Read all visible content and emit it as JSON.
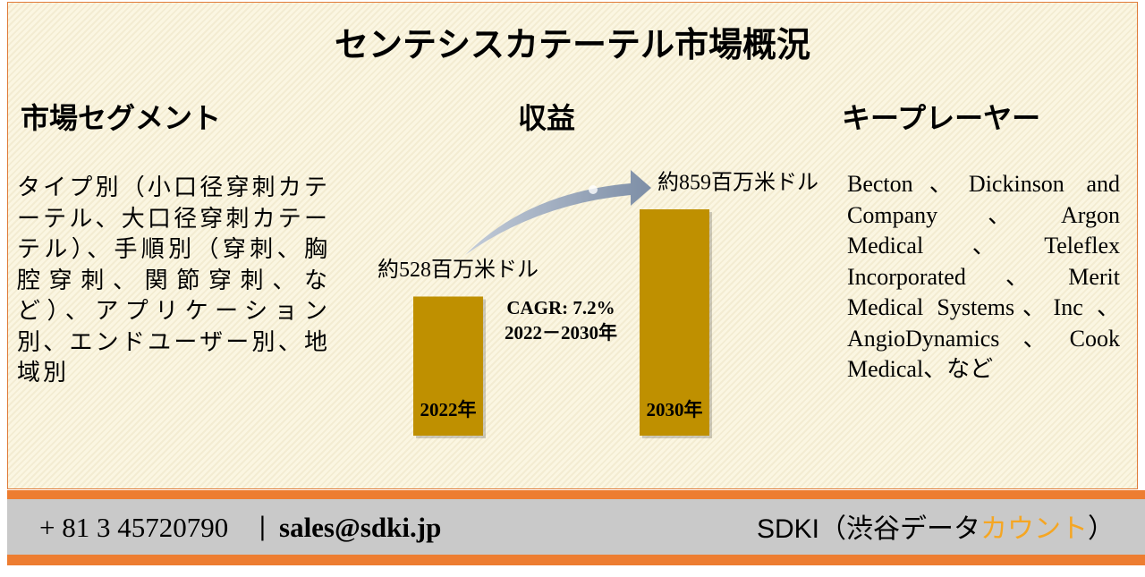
{
  "title": "センテシスカテーテル市場概況",
  "segments": {
    "heading": "市場セグメント",
    "text": "タイプ別（小口径穿刺カテーテル、大口径穿刺カテーテル）、手順別（穿刺、胸腔穿刺、関節穿刺、など）、アプリケーション別、エンドユーザー別、地域別"
  },
  "chart_data": {
    "type": "bar",
    "title": "収益",
    "categories": [
      "2022年",
      "2030年"
    ],
    "values": [
      528,
      859
    ],
    "value_labels": [
      "約528百万米ドル",
      "約859百万米ドル"
    ],
    "color": "#bf9000",
    "annotations": [
      "CAGR: 7.2%",
      "2022－2030年"
    ]
  },
  "players": {
    "heading": "キープレーヤー",
    "text": "Becton、Dickinson and Company、Argon Medical、Teleflex Incorporated、Merit Medical Systems、Inc 、AngioDynamics、Cook Medical、など"
  },
  "footer": {
    "phone": "+ 81 3 45720790",
    "separator": "|",
    "email": "sales@sdki.jp",
    "brand": "SDKI（渋谷データ",
    "brand_highlight": "カウント",
    "brand_end": "）"
  }
}
